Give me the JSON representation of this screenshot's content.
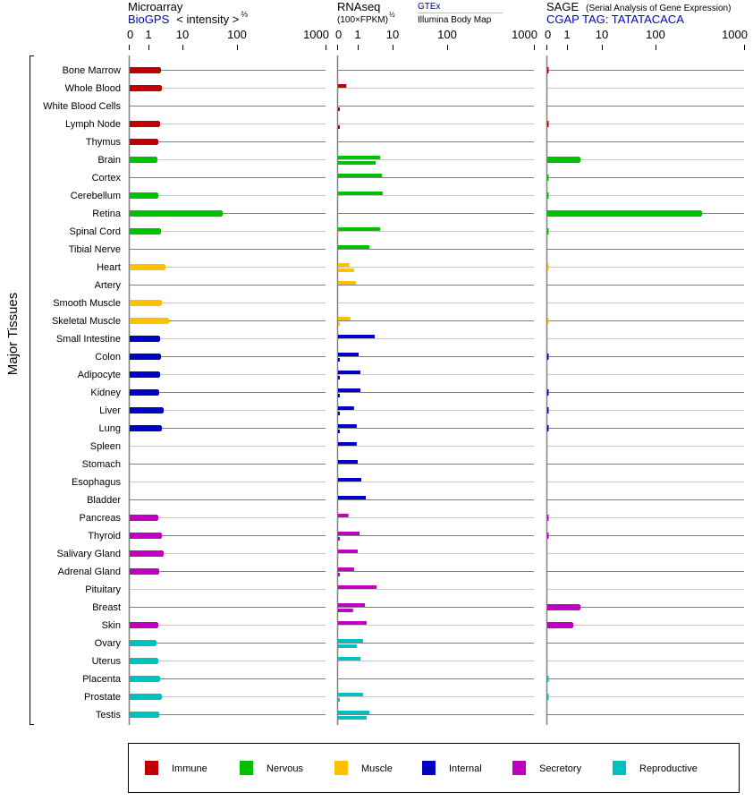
{
  "chart_data": {
    "type": "bar",
    "y_group_label": "Major Tissues",
    "panels": [
      {
        "id": "microarray",
        "title": "Microarray",
        "source": "BioGPS",
        "scale_label": "< intensity >",
        "scale_exp": "⅔",
        "ticks": [
          0,
          1,
          10,
          100,
          1000
        ],
        "tick_labels": [
          "0",
          "1",
          "10",
          "100",
          "1000"
        ],
        "xlim": [
          0,
          1000
        ]
      },
      {
        "id": "rnaseq",
        "title": "RNAseq",
        "scale_label": "(100×FPKM)",
        "scale_exp": "½",
        "series_labels": [
          "GTEx",
          "Illumina Body Map"
        ],
        "ticks": [
          0,
          1,
          10,
          100,
          1000
        ],
        "tick_labels": [
          "0",
          "1",
          "10",
          "100",
          "1000"
        ],
        "xlim": [
          0,
          1000
        ]
      },
      {
        "id": "sage",
        "title": "SAGE",
        "subtitle": "(Serial Analysis of Gene Expression)",
        "tag_label": "CGAP TAG: TATATACACA",
        "ticks": [
          0,
          1,
          10,
          100,
          1000
        ],
        "tick_labels": [
          "0",
          "1",
          "10",
          "100",
          "1000"
        ],
        "xlim": [
          0,
          1000
        ]
      }
    ],
    "groups": [
      {
        "name": "Immune",
        "color": "#c00000"
      },
      {
        "name": "Nervous",
        "color": "#00c000"
      },
      {
        "name": "Muscle",
        "color": "#ffc000"
      },
      {
        "name": "Internal",
        "color": "#0000c0"
      },
      {
        "name": "Secretory",
        "color": "#c000c0"
      },
      {
        "name": "Reproductive",
        "color": "#00c0c0"
      }
    ],
    "tissues": [
      {
        "name": "Bone Marrow",
        "group": 0,
        "microarray": 2.2,
        "gtex": null,
        "illumina": null,
        "sage": 0.1
      },
      {
        "name": "Whole Blood",
        "group": 0,
        "microarray": 2.33,
        "gtex": 0.45,
        "illumina": null,
        "sage": null
      },
      {
        "name": "White Blood Cells",
        "group": 0,
        "microarray": null,
        "gtex": null,
        "illumina": 0.05,
        "sage": null
      },
      {
        "name": "Lymph Node",
        "group": 0,
        "microarray": 2.07,
        "gtex": null,
        "illumina": 0.05,
        "sage": 0.1
      },
      {
        "name": "Thymus",
        "group": 0,
        "microarray": 1.83,
        "gtex": null,
        "illumina": null,
        "sage": null
      },
      {
        "name": "Brain",
        "group": 1,
        "microarray": 1.72,
        "gtex": 4.4,
        "illumina": 3.3,
        "sage": 2.3
      },
      {
        "name": "Cortex",
        "group": 1,
        "microarray": null,
        "gtex": 4.9,
        "illumina": null,
        "sage": 0.1
      },
      {
        "name": "Cerebellum",
        "group": 1,
        "microarray": 1.83,
        "gtex": 5.2,
        "illumina": null,
        "sage": 0.1
      },
      {
        "name": "Retina",
        "group": 1,
        "microarray": 52.6,
        "gtex": null,
        "illumina": null,
        "sage": 327
      },
      {
        "name": "Spinal Cord",
        "group": 1,
        "microarray": 2.2,
        "gtex": 4.4,
        "illumina": null,
        "sage": 0.1
      },
      {
        "name": "Tibial Nerve",
        "group": 1,
        "microarray": null,
        "gtex": 2.15,
        "illumina": null,
        "sage": null
      },
      {
        "name": "Heart",
        "group": 2,
        "microarray": 2.97,
        "gtex": 0.59,
        "illumina": 0.82,
        "sage": 0.1
      },
      {
        "name": "Artery",
        "group": 2,
        "microarray": null,
        "gtex": 0.91,
        "illumina": null,
        "sage": null
      },
      {
        "name": "Smooth Muscle",
        "group": 2,
        "microarray": 2.33,
        "gtex": null,
        "illumina": null,
        "sage": null
      },
      {
        "name": "Skeletal Muscle",
        "group": 2,
        "microarray": 3.79,
        "gtex": 0.64,
        "illumina": 0.05,
        "sage": 0.1
      },
      {
        "name": "Small Intestine",
        "group": 3,
        "microarray": 2.07,
        "gtex": 3.07,
        "illumina": null,
        "sage": null
      },
      {
        "name": "Colon",
        "group": 3,
        "microarray": 2.2,
        "gtex": 1.06,
        "illumina": 0.05,
        "sage": 0.1
      },
      {
        "name": "Adipocyte",
        "group": 3,
        "microarray": 2.07,
        "gtex": 1.19,
        "illumina": 0.05,
        "sage": null
      },
      {
        "name": "Kidney",
        "group": 3,
        "microarray": 1.95,
        "gtex": 1.19,
        "illumina": 0.05,
        "sage": 0.1
      },
      {
        "name": "Liver",
        "group": 3,
        "microarray": 2.63,
        "gtex": 0.82,
        "illumina": 0.05,
        "sage": 0.1
      },
      {
        "name": "Lung",
        "group": 3,
        "microarray": 2.33,
        "gtex": 0.95,
        "illumina": 0.05,
        "sage": 0.1
      },
      {
        "name": "Spleen",
        "group": 3,
        "microarray": null,
        "gtex": 0.95,
        "illumina": null,
        "sage": null
      },
      {
        "name": "Stomach",
        "group": 3,
        "microarray": null,
        "gtex": 1.0,
        "illumina": null,
        "sage": null
      },
      {
        "name": "Esophagus",
        "group": 3,
        "microarray": null,
        "gtex": 1.27,
        "illumina": null,
        "sage": null
      },
      {
        "name": "Bladder",
        "group": 3,
        "microarray": null,
        "gtex": 1.7,
        "illumina": null,
        "sage": null
      },
      {
        "name": "Pancreas",
        "group": 4,
        "microarray": 1.83,
        "gtex": 0.55,
        "illumina": null,
        "sage": 0.1
      },
      {
        "name": "Thyroid",
        "group": 4,
        "microarray": 2.33,
        "gtex": 1.13,
        "illumina": 0.05,
        "sage": 0.1
      },
      {
        "name": "Salivary Gland",
        "group": 4,
        "microarray": 2.63,
        "gtex": 1.0,
        "illumina": null,
        "sage": null
      },
      {
        "name": "Adrenal Gland",
        "group": 4,
        "microarray": 1.95,
        "gtex": 0.82,
        "illumina": 0.05,
        "sage": null
      },
      {
        "name": "Pituitary",
        "group": 4,
        "microarray": null,
        "gtex": 3.46,
        "illumina": null,
        "sage": null
      },
      {
        "name": "Breast",
        "group": 4,
        "microarray": null,
        "gtex": 1.6,
        "illumina": 0.77,
        "sage": 2.3
      },
      {
        "name": "Skin",
        "group": 4,
        "microarray": 1.83,
        "gtex": 1.8,
        "illumina": null,
        "sage": 1.43
      },
      {
        "name": "Ovary",
        "group": 5,
        "microarray": 1.62,
        "gtex": 1.42,
        "illumina": 0.95,
        "sage": null
      },
      {
        "name": "Uterus",
        "group": 5,
        "microarray": 1.83,
        "gtex": 1.19,
        "illumina": null,
        "sage": null
      },
      {
        "name": "Placenta",
        "group": 5,
        "microarray": 2.07,
        "gtex": null,
        "illumina": null,
        "sage": 0.1
      },
      {
        "name": "Prostate",
        "group": 5,
        "microarray": 2.33,
        "gtex": 1.42,
        "illumina": 0.05,
        "sage": 0.1
      },
      {
        "name": "Testis",
        "group": 5,
        "microarray": 1.95,
        "gtex": 2.15,
        "illumina": 1.8,
        "sage": null
      }
    ]
  }
}
